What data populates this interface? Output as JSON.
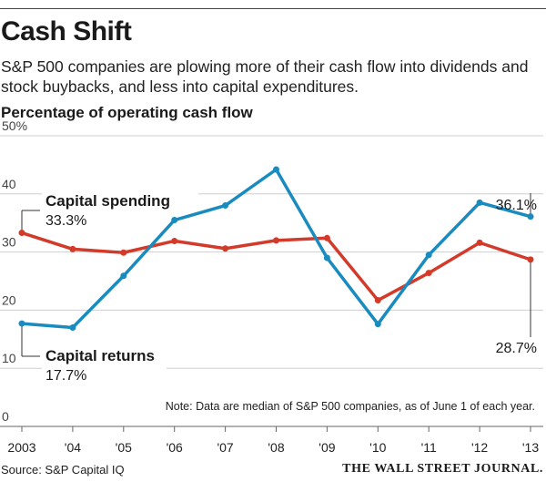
{
  "header": {
    "title": "Cash Shift",
    "subtitle": "S&P 500 companies are plowing more of their cash flow into dividends and stock buybacks, and less into capital expenditures.",
    "axis_title": "Percentage of operating cash flow"
  },
  "footer": {
    "source": "Source: S&P Capital IQ",
    "brand": "THE WALL STREET JOURNAL."
  },
  "chart_data": {
    "type": "line",
    "x": [
      "2003",
      "'04",
      "'05",
      "'06",
      "'07",
      "'08",
      "'09",
      "'10",
      "'11",
      "'12",
      "'13"
    ],
    "ylim": [
      0,
      50
    ],
    "y_ticks": [
      {
        "value": 0,
        "label": "0"
      },
      {
        "value": 10,
        "label": "10"
      },
      {
        "value": 20,
        "label": "20"
      },
      {
        "value": 30,
        "label": "30"
      },
      {
        "value": 40,
        "label": "40"
      },
      {
        "value": 50,
        "label": "50%"
      }
    ],
    "grid": true,
    "note": "Note: Data are median of S&P 500 companies, as of June 1 of each year.",
    "series": [
      {
        "name": "Capital spending",
        "color": "#d23a2a",
        "values": [
          33.3,
          30.5,
          29.9,
          31.9,
          30.6,
          32.0,
          32.4,
          21.7,
          26.4,
          31.6,
          28.7
        ],
        "start_label": "33.3%",
        "end_label": "28.7%"
      },
      {
        "name": "Capital returns",
        "color": "#1a8bbf",
        "values": [
          17.7,
          17.0,
          25.9,
          35.5,
          38.0,
          44.2,
          29.0,
          17.6,
          29.5,
          38.5,
          36.1
        ],
        "start_label": "17.7%",
        "end_label": "36.1%"
      }
    ]
  }
}
